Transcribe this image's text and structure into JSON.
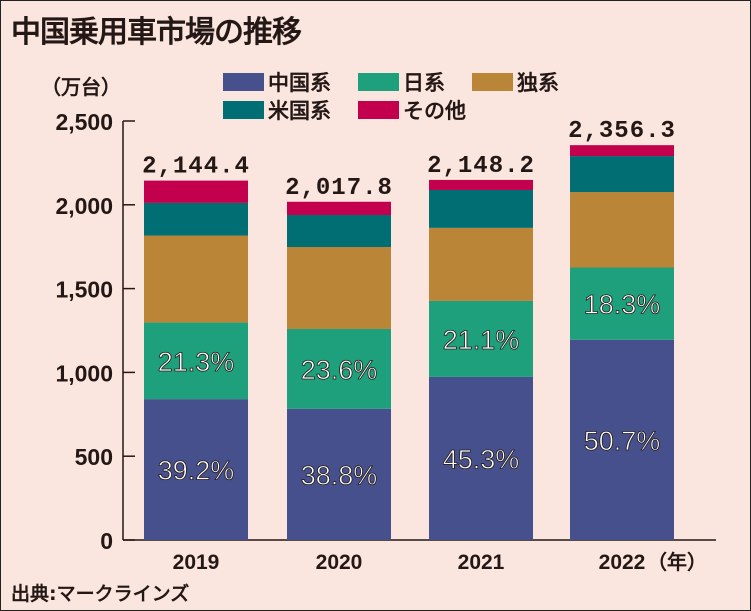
{
  "chart_data": {
    "type": "bar",
    "stacked": true,
    "title": "中国乗用車市場の推移",
    "ylabel": "（万台）",
    "xlabel": "（年）",
    "source": "出典:マークラインズ",
    "ylim": [
      0,
      2500
    ],
    "yticks": [
      0,
      500,
      1000,
      1500,
      2000,
      2500
    ],
    "ytick_labels": [
      "0",
      "500",
      "1,000",
      "1,500",
      "2,000",
      "2,500"
    ],
    "categories": [
      "2019",
      "2020",
      "2021",
      "2022"
    ],
    "totals": [
      2144.4,
      2017.8,
      2148.2,
      2356.3
    ],
    "total_labels": [
      "2,144.4",
      "2,017.8",
      "2,148.2",
      "2,356.3"
    ],
    "series": [
      {
        "name": "中国系",
        "color": "#46508c",
        "values": [
          840.6,
          782.9,
          973.1,
          1194.6
        ],
        "labels": [
          "39.2%",
          "38.8%",
          "45.3%",
          "50.7%"
        ]
      },
      {
        "name": "日系",
        "color": "#1ea07c",
        "values": [
          456.8,
          476.2,
          453.3,
          431.2
        ],
        "labels": [
          "21.3%",
          "23.6%",
          "21.1%",
          "18.3%"
        ]
      },
      {
        "name": "独系",
        "color": "#bb8538",
        "values": [
          519,
          489,
          436,
          450
        ],
        "labels": []
      },
      {
        "name": "米国系",
        "color": "#006e73",
        "values": [
          195,
          191,
          226,
          215
        ],
        "labels": []
      },
      {
        "name": "その他",
        "color": "#c3004d",
        "values": [
          133,
          79,
          60,
          65
        ],
        "labels": []
      }
    ],
    "legend_position": "top"
  }
}
